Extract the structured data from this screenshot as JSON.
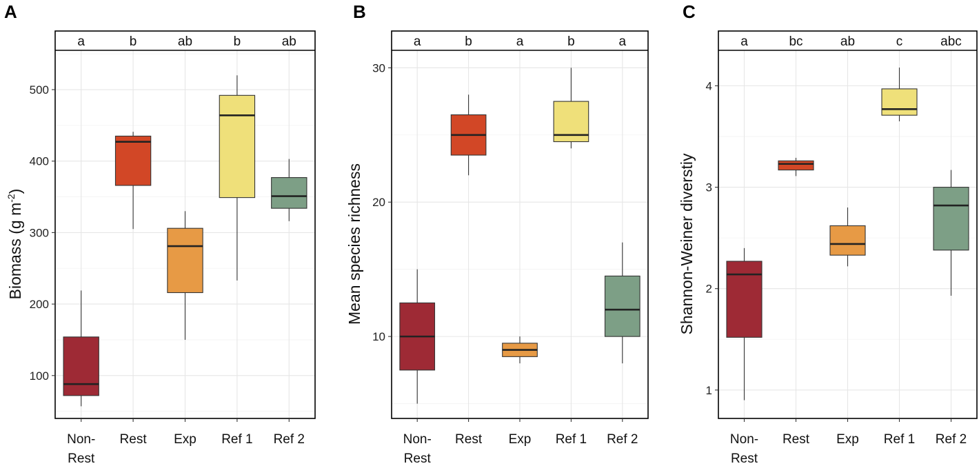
{
  "chart_data": [
    {
      "type": "box",
      "panel": "A",
      "ylabel": "Biomass (g m",
      "ylabel_superscript": "-2",
      "ylabel_suffix": ")",
      "categories": [
        "Non-Rest",
        "Rest",
        "Exp",
        "Ref 1",
        "Ref 2"
      ],
      "category_lines": [
        [
          "Non-",
          "Rest"
        ],
        [
          "Rest"
        ],
        [
          "Exp"
        ],
        [
          "Ref 1"
        ],
        [
          "Ref 2"
        ]
      ],
      "ylim": [
        40,
        555
      ],
      "yticks": [
        100,
        200,
        300,
        400,
        500
      ],
      "significance": [
        "a",
        "b",
        "ab",
        "b",
        "ab"
      ],
      "colors": [
        "#9e2a35",
        "#d24726",
        "#e79a45",
        "#efe07a",
        "#7d9f86"
      ],
      "boxes": [
        {
          "min": 57,
          "q1": 72,
          "median": 88,
          "q3": 154,
          "max": 219
        },
        {
          "min": 305,
          "q1": 366,
          "median": 427,
          "q3": 435,
          "max": 441
        },
        {
          "min": 150,
          "q1": 216,
          "median": 281,
          "q3": 306,
          "max": 330
        },
        {
          "min": 233,
          "q1": 349,
          "median": 464,
          "q3": 492,
          "max": 520
        },
        {
          "min": 316,
          "q1": 334,
          "median": 351,
          "q3": 377,
          "max": 403
        }
      ]
    },
    {
      "type": "box",
      "panel": "B",
      "ylabel": "Mean species richness",
      "ylabel_superscript": "",
      "ylabel_suffix": "",
      "categories": [
        "Non-Rest",
        "Rest",
        "Exp",
        "Ref 1",
        "Ref 2"
      ],
      "category_lines": [
        [
          "Non-",
          "Rest"
        ],
        [
          "Rest"
        ],
        [
          "Exp"
        ],
        [
          "Ref 1"
        ],
        [
          "Ref 2"
        ]
      ],
      "ylim": [
        3.9,
        31.3
      ],
      "yticks": [
        10,
        20,
        30
      ],
      "significance": [
        "a",
        "b",
        "a",
        "b",
        "a"
      ],
      "colors": [
        "#9e2a35",
        "#d24726",
        "#e79a45",
        "#efe07a",
        "#7d9f86"
      ],
      "boxes": [
        {
          "min": 5,
          "q1": 7.5,
          "median": 10,
          "q3": 12.5,
          "max": 15
        },
        {
          "min": 22,
          "q1": 23.5,
          "median": 25,
          "q3": 26.5,
          "max": 28
        },
        {
          "min": 8,
          "q1": 8.5,
          "median": 9,
          "q3": 9.5,
          "max": 10
        },
        {
          "min": 24,
          "q1": 24.5,
          "median": 25,
          "q3": 27.5,
          "max": 30
        },
        {
          "min": 8,
          "q1": 10,
          "median": 12,
          "q3": 14.5,
          "max": 17
        }
      ]
    },
    {
      "type": "box",
      "panel": "C",
      "ylabel": "Shannon-Weiner diverstiy",
      "ylabel_superscript": "",
      "ylabel_suffix": "",
      "categories": [
        "Non-Rest",
        "Rest",
        "Exp",
        "Ref 1",
        "Ref 2"
      ],
      "category_lines": [
        [
          "Non-",
          "Rest"
        ],
        [
          "Rest"
        ],
        [
          "Exp"
        ],
        [
          "Ref 1"
        ],
        [
          "Ref 2"
        ]
      ],
      "ylim": [
        0.72,
        4.35
      ],
      "yticks": [
        1,
        2,
        3,
        4
      ],
      "significance": [
        "a",
        "bc",
        "ab",
        "c",
        "abc"
      ],
      "colors": [
        "#9e2a35",
        "#d24726",
        "#e79a45",
        "#efe07a",
        "#7d9f86"
      ],
      "boxes": [
        {
          "min": 0.9,
          "q1": 1.52,
          "median": 2.14,
          "q3": 2.27,
          "max": 2.4
        },
        {
          "min": 3.11,
          "q1": 3.17,
          "median": 3.23,
          "q3": 3.26,
          "max": 3.29
        },
        {
          "min": 2.22,
          "q1": 2.33,
          "median": 2.44,
          "q3": 2.62,
          "max": 2.8
        },
        {
          "min": 3.65,
          "q1": 3.71,
          "median": 3.77,
          "q3": 3.97,
          "max": 4.18
        },
        {
          "min": 1.93,
          "q1": 2.38,
          "median": 2.82,
          "q3": 3.0,
          "max": 3.17
        }
      ]
    }
  ]
}
